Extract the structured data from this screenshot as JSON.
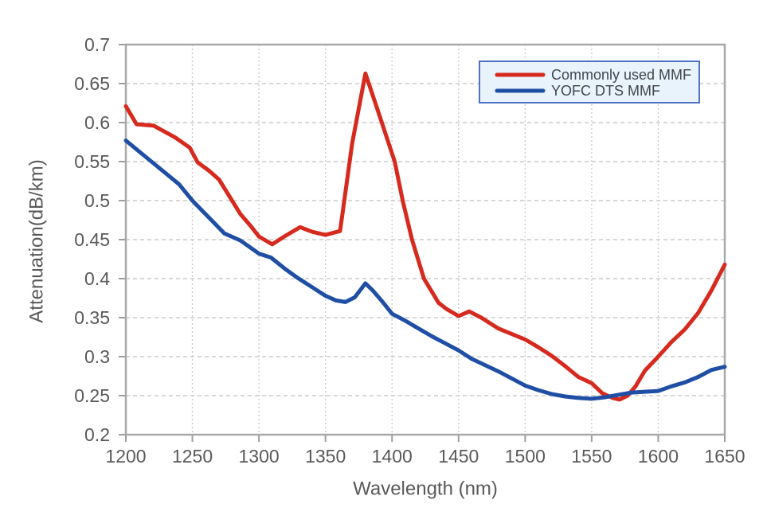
{
  "chart_data": {
    "type": "line",
    "title": "",
    "xlabel": "Wavelength (nm)",
    "ylabel": "Attenuation(dB/km)",
    "xlim": [
      1200,
      1650
    ],
    "ylim": [
      0.2,
      0.7
    ],
    "x_ticks": [
      1200,
      1250,
      1300,
      1350,
      1400,
      1450,
      1500,
      1550,
      1600,
      1650
    ],
    "y_ticks": [
      0.2,
      0.25,
      0.3,
      0.35,
      0.4,
      0.45,
      0.5,
      0.55,
      0.6,
      0.65,
      0.7
    ],
    "grid": "dashed",
    "legend": {
      "position": "top-right",
      "fill": "#e8f3fc",
      "border": "#4d72c4",
      "text_color": "#41464e"
    },
    "series": [
      {
        "name": "Commonly used MMF",
        "color": "#d62a1e",
        "points": [
          [
            1200,
            0.621
          ],
          [
            1208,
            0.598
          ],
          [
            1221,
            0.596
          ],
          [
            1237,
            0.581
          ],
          [
            1248,
            0.568
          ],
          [
            1254,
            0.549
          ],
          [
            1262,
            0.539
          ],
          [
            1270,
            0.527
          ],
          [
            1286,
            0.483
          ],
          [
            1294,
            0.467
          ],
          [
            1300,
            0.454
          ],
          [
            1310,
            0.444
          ],
          [
            1320,
            0.455
          ],
          [
            1331,
            0.466
          ],
          [
            1340,
            0.46
          ],
          [
            1350,
            0.456
          ],
          [
            1361,
            0.461
          ],
          [
            1370,
            0.573
          ],
          [
            1380,
            0.663
          ],
          [
            1390,
            0.612
          ],
          [
            1402,
            0.55
          ],
          [
            1408,
            0.5
          ],
          [
            1415,
            0.45
          ],
          [
            1424,
            0.4
          ],
          [
            1435,
            0.369
          ],
          [
            1441,
            0.361
          ],
          [
            1450,
            0.352
          ],
          [
            1458,
            0.358
          ],
          [
            1467,
            0.35
          ],
          [
            1480,
            0.336
          ],
          [
            1490,
            0.329
          ],
          [
            1500,
            0.322
          ],
          [
            1510,
            0.312
          ],
          [
            1520,
            0.301
          ],
          [
            1530,
            0.288
          ],
          [
            1540,
            0.274
          ],
          [
            1550,
            0.266
          ],
          [
            1558,
            0.253
          ],
          [
            1566,
            0.247
          ],
          [
            1571,
            0.245
          ],
          [
            1577,
            0.25
          ],
          [
            1583,
            0.262
          ],
          [
            1590,
            0.282
          ],
          [
            1600,
            0.3
          ],
          [
            1610,
            0.319
          ],
          [
            1620,
            0.335
          ],
          [
            1630,
            0.356
          ],
          [
            1640,
            0.385
          ],
          [
            1650,
            0.418
          ]
        ]
      },
      {
        "name": "YOFC DTS MMF",
        "color": "#1f4fa5",
        "points": [
          [
            1200,
            0.577
          ],
          [
            1210,
            0.563
          ],
          [
            1220,
            0.549
          ],
          [
            1230,
            0.535
          ],
          [
            1240,
            0.521
          ],
          [
            1250,
            0.5
          ],
          [
            1258,
            0.486
          ],
          [
            1266,
            0.472
          ],
          [
            1274,
            0.458
          ],
          [
            1286,
            0.449
          ],
          [
            1300,
            0.432
          ],
          [
            1309,
            0.427
          ],
          [
            1320,
            0.412
          ],
          [
            1329,
            0.401
          ],
          [
            1340,
            0.389
          ],
          [
            1350,
            0.378
          ],
          [
            1358,
            0.372
          ],
          [
            1365,
            0.37
          ],
          [
            1372,
            0.376
          ],
          [
            1380,
            0.394
          ],
          [
            1386,
            0.384
          ],
          [
            1393,
            0.37
          ],
          [
            1400,
            0.355
          ],
          [
            1410,
            0.346
          ],
          [
            1418,
            0.338
          ],
          [
            1430,
            0.326
          ],
          [
            1440,
            0.317
          ],
          [
            1450,
            0.308
          ],
          [
            1460,
            0.297
          ],
          [
            1470,
            0.289
          ],
          [
            1480,
            0.281
          ],
          [
            1490,
            0.272
          ],
          [
            1500,
            0.263
          ],
          [
            1510,
            0.257
          ],
          [
            1520,
            0.252
          ],
          [
            1530,
            0.249
          ],
          [
            1540,
            0.247
          ],
          [
            1550,
            0.246
          ],
          [
            1560,
            0.248
          ],
          [
            1570,
            0.251
          ],
          [
            1580,
            0.254
          ],
          [
            1590,
            0.255
          ],
          [
            1600,
            0.256
          ],
          [
            1610,
            0.262
          ],
          [
            1620,
            0.267
          ],
          [
            1630,
            0.274
          ],
          [
            1640,
            0.283
          ],
          [
            1650,
            0.287
          ]
        ]
      }
    ],
    "style": {
      "background": "#ffffff",
      "plot_border_color": "#a9a9a9",
      "grid_color": "#cccccc",
      "tick_color": "#9e9e9e",
      "axis_text_color": "#595959",
      "line_width": 5
    }
  }
}
